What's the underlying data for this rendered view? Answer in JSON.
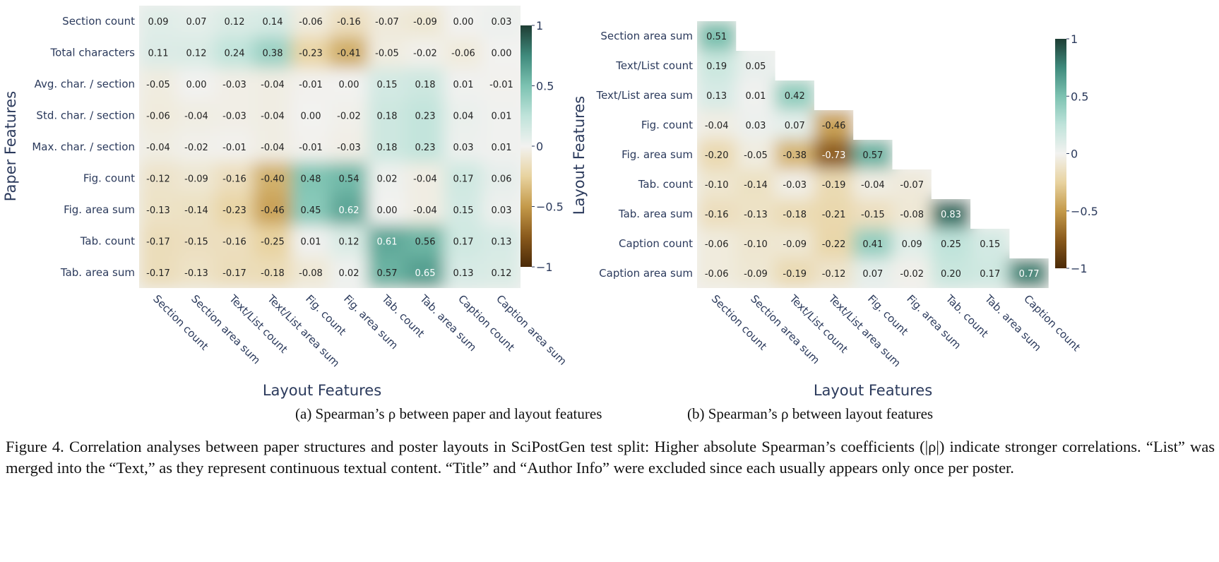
{
  "chart_data": [
    {
      "type": "heatmap",
      "title": "(a) Spearman’s ρ between paper and layout features",
      "xlabel": "Layout Features",
      "ylabel": "Paper Features",
      "x_categories": [
        "Section count",
        "Section area sum",
        "Text/List count",
        "Text/List area sum",
        "Fig. count",
        "Fig. area sum",
        "Tab. count",
        "Tab. area sum",
        "Caption count",
        "Caption area sum"
      ],
      "y_categories": [
        "Section count",
        "Total characters",
        "Avg. char. / section",
        "Std. char. / section",
        "Max. char. / section",
        "Fig. count",
        "Fig. area sum",
        "Tab. count",
        "Tab. area sum"
      ],
      "values": [
        [
          0.09,
          0.07,
          0.12,
          0.14,
          -0.06,
          -0.16,
          -0.07,
          -0.09,
          0.0,
          0.03
        ],
        [
          0.11,
          0.12,
          0.24,
          0.38,
          -0.23,
          -0.41,
          -0.05,
          -0.02,
          -0.06,
          0.0
        ],
        [
          -0.05,
          0.0,
          -0.03,
          -0.04,
          -0.01,
          0.0,
          0.15,
          0.18,
          0.01,
          -0.01
        ],
        [
          -0.06,
          -0.04,
          -0.03,
          -0.04,
          0.0,
          -0.02,
          0.18,
          0.23,
          0.04,
          0.01
        ],
        [
          -0.04,
          -0.02,
          -0.01,
          -0.04,
          -0.01,
          -0.03,
          0.18,
          0.23,
          0.03,
          0.01
        ],
        [
          -0.12,
          -0.09,
          -0.16,
          -0.4,
          0.48,
          0.54,
          0.02,
          -0.04,
          0.17,
          0.06
        ],
        [
          -0.13,
          -0.14,
          -0.23,
          -0.46,
          0.45,
          0.62,
          0.0,
          -0.04,
          0.15,
          0.03
        ],
        [
          -0.17,
          -0.15,
          -0.16,
          -0.25,
          0.01,
          0.12,
          0.61,
          0.56,
          0.17,
          0.13
        ],
        [
          -0.17,
          -0.13,
          -0.17,
          -0.18,
          -0.08,
          0.02,
          0.57,
          0.65,
          0.13,
          0.12
        ]
      ],
      "vmin": -1,
      "vmax": 1,
      "colorbar_ticks": [
        {
          "value": 1,
          "label": "1"
        },
        {
          "value": 0.5,
          "label": "0.5"
        },
        {
          "value": 0,
          "label": "0"
        },
        {
          "value": -0.5,
          "label": "−0.5"
        },
        {
          "value": -1,
          "label": "−1"
        }
      ],
      "colormap": "BrBG"
    },
    {
      "type": "heatmap",
      "title": "(b) Spearman’s ρ between layout features",
      "xlabel": "Layout Features",
      "ylabel": "Layout Features",
      "x_categories": [
        "Section count",
        "Section area sum",
        "Text/List count",
        "Text/List area sum",
        "Fig. count",
        "Fig. area sum",
        "Tab. count",
        "Tab. area sum",
        "Caption count"
      ],
      "y_categories": [
        "Section area sum",
        "Text/List count",
        "Text/List area sum",
        "Fig. count",
        "Fig. area sum",
        "Tab. count",
        "Tab. area sum",
        "Caption count",
        "Caption area sum"
      ],
      "values": [
        [
          0.51
        ],
        [
          0.19,
          0.05
        ],
        [
          0.13,
          0.01,
          0.42
        ],
        [
          -0.04,
          0.03,
          0.07,
          -0.46
        ],
        [
          -0.2,
          -0.05,
          -0.38,
          -0.73,
          0.57
        ],
        [
          -0.1,
          -0.14,
          -0.03,
          -0.19,
          -0.04,
          -0.07
        ],
        [
          -0.16,
          -0.13,
          -0.18,
          -0.21,
          -0.15,
          -0.08,
          0.83
        ],
        [
          -0.06,
          -0.1,
          -0.09,
          -0.22,
          0.41,
          0.09,
          0.25,
          0.15
        ],
        [
          -0.06,
          -0.09,
          -0.19,
          -0.12,
          0.07,
          -0.02,
          0.2,
          0.17,
          0.77
        ]
      ],
      "vmin": -1,
      "vmax": 1,
      "colorbar_ticks": [
        {
          "value": 1,
          "label": "1"
        },
        {
          "value": 0.5,
          "label": "0.5"
        },
        {
          "value": 0,
          "label": "0"
        },
        {
          "value": -0.5,
          "label": "−0.5"
        },
        {
          "value": -1,
          "label": "−1"
        }
      ],
      "colormap": "BrBG"
    }
  ],
  "caption": "Figure 4. Correlation analyses between paper structures and poster layouts in SciPostGen test split: Higher absolute Spearman’s coefficients (|ρ|) indicate stronger correlations. “List” was merged into the “Text,” as they represent continuous textual content. “Title” and “Author Info” were excluded since each usually appears only once per poster."
}
